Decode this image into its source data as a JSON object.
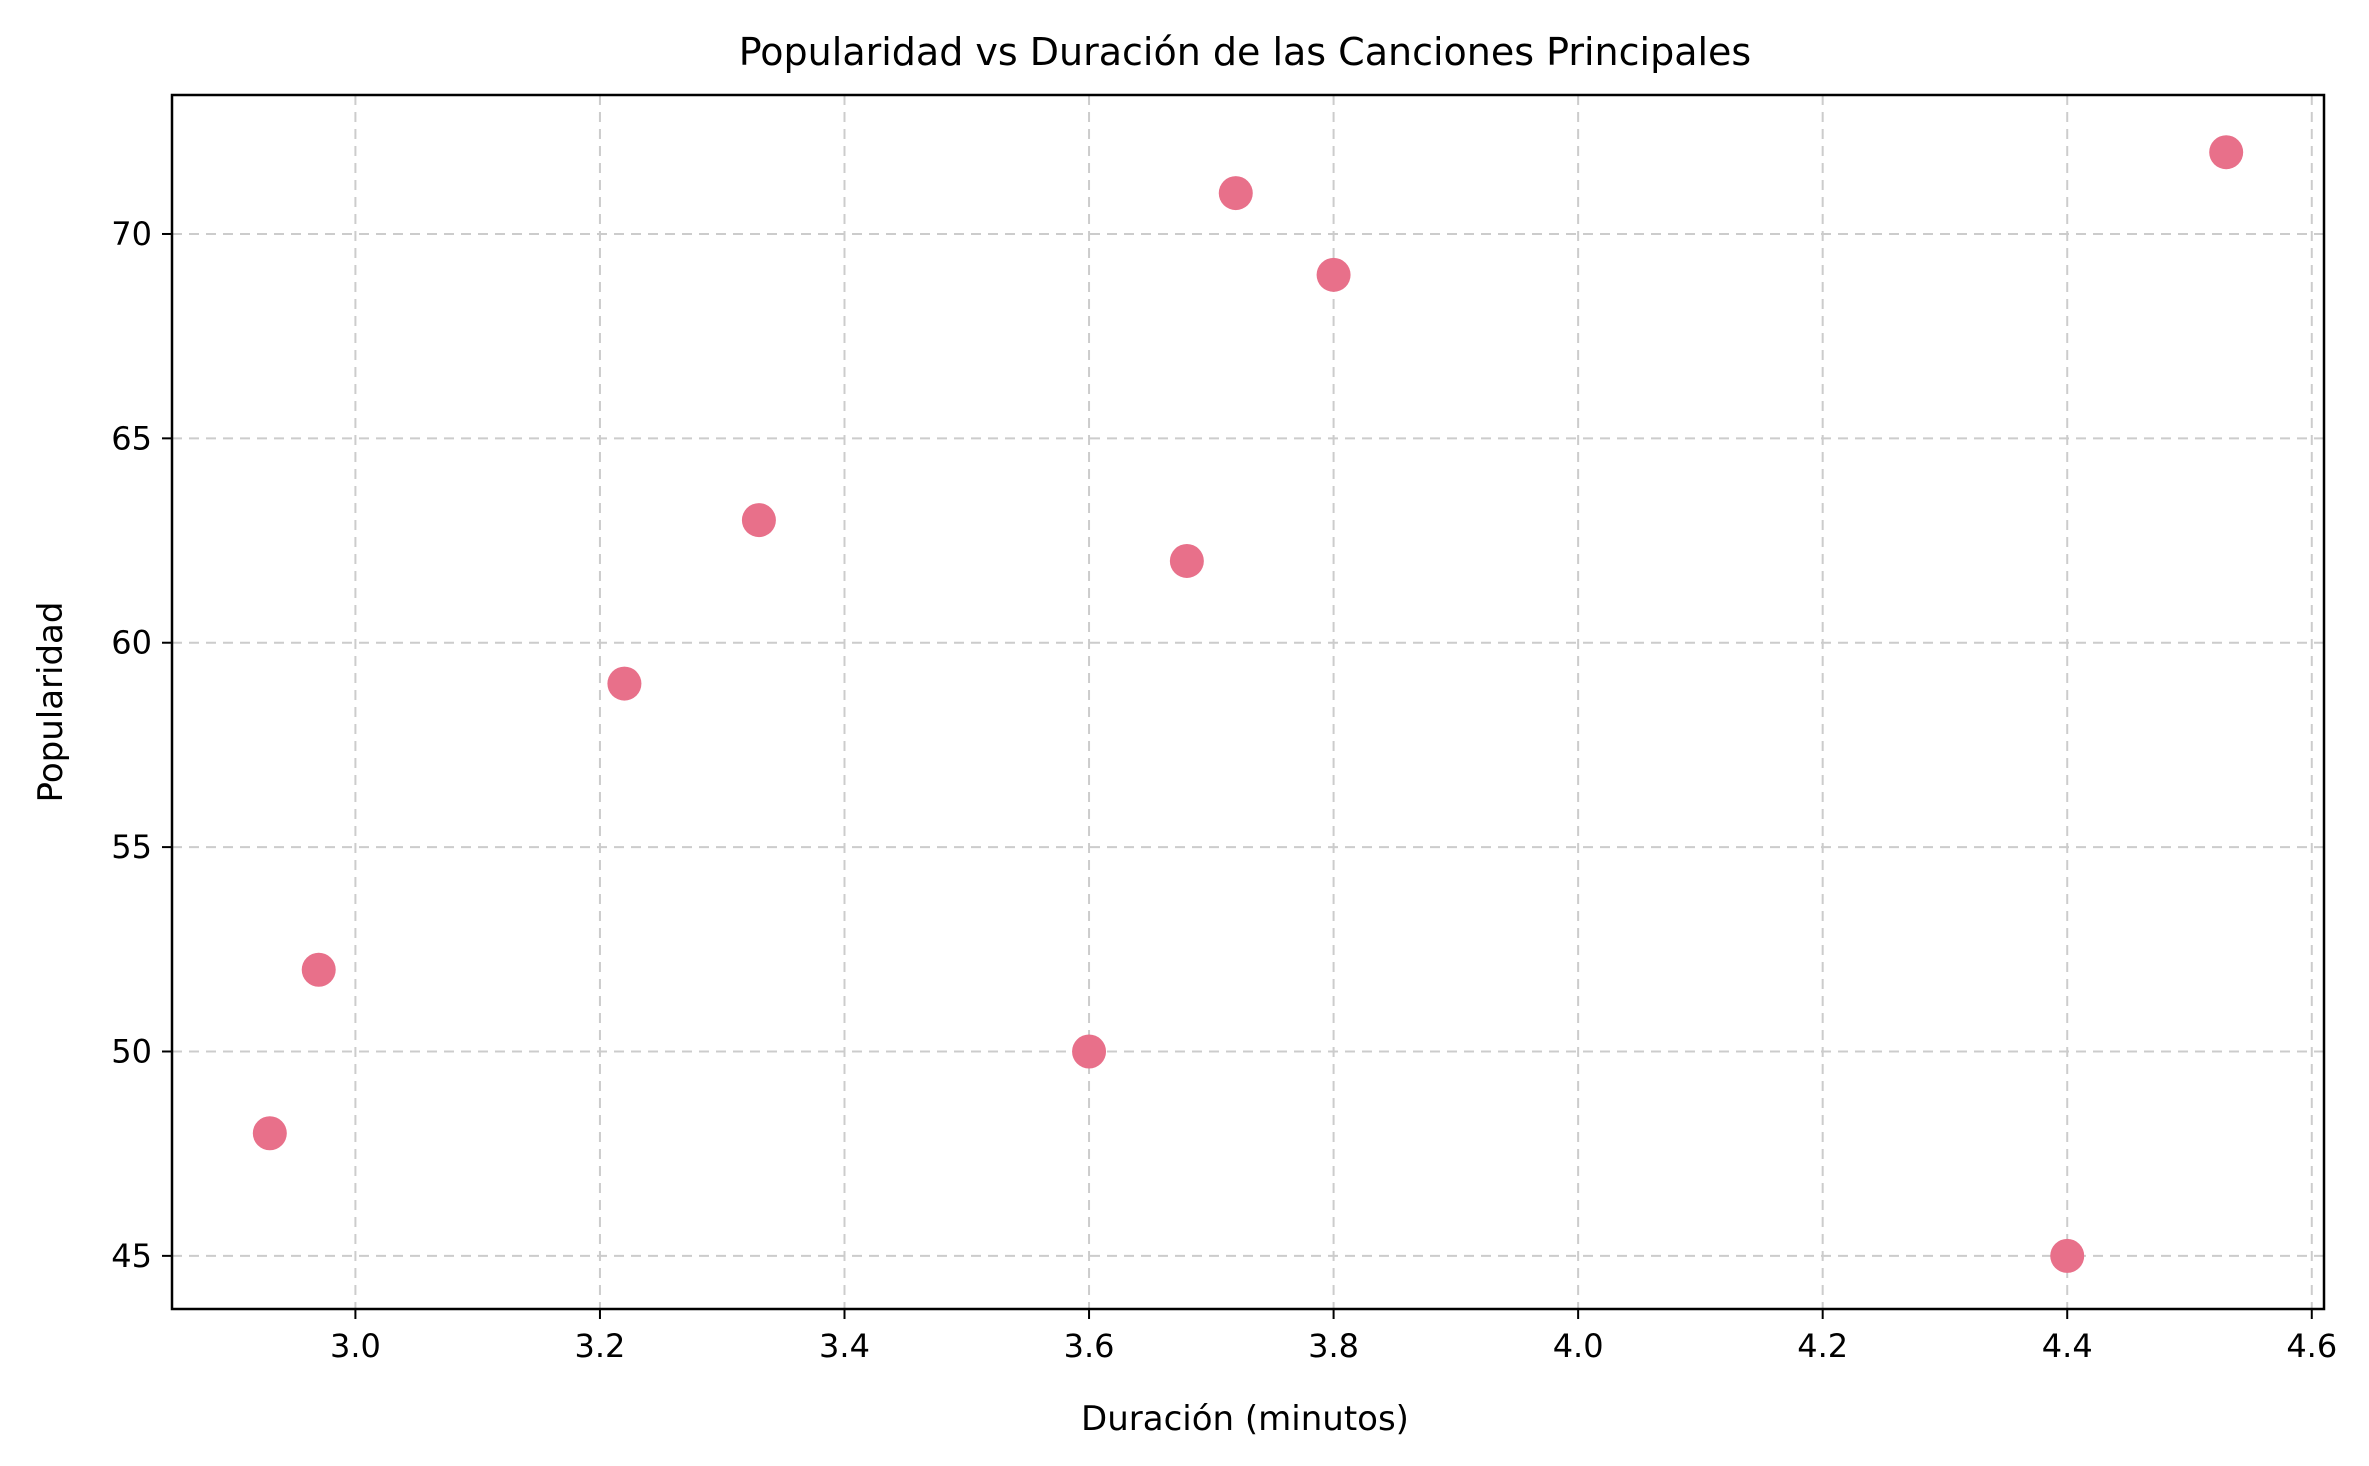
{
  "chart_data": {
    "type": "scatter",
    "title": "Popularidad vs Duración de las Canciones Principales",
    "xlabel": "Duración (minutos)",
    "ylabel": "Popularidad",
    "xlim": [
      2.85,
      4.61
    ],
    "ylim": [
      43.7,
      73.4
    ],
    "xticks": [
      3.0,
      3.2,
      3.4,
      3.6,
      3.8,
      4.0,
      4.2,
      4.4,
      4.6
    ],
    "xtick_labels": [
      "3.0",
      "3.2",
      "3.4",
      "3.6",
      "3.8",
      "4.0",
      "4.2",
      "4.4",
      "4.6"
    ],
    "yticks": [
      45,
      50,
      55,
      60,
      65,
      70
    ],
    "ytick_labels": [
      "45",
      "50",
      "55",
      "60",
      "65",
      "70"
    ],
    "grid": true,
    "color": "#e8708a",
    "points": [
      {
        "x": 2.93,
        "y": 48
      },
      {
        "x": 2.97,
        "y": 52
      },
      {
        "x": 3.22,
        "y": 59
      },
      {
        "x": 3.33,
        "y": 63
      },
      {
        "x": 3.6,
        "y": 50
      },
      {
        "x": 3.68,
        "y": 62
      },
      {
        "x": 3.72,
        "y": 71
      },
      {
        "x": 3.8,
        "y": 69
      },
      {
        "x": 4.4,
        "y": 45
      },
      {
        "x": 4.53,
        "y": 72
      }
    ]
  }
}
